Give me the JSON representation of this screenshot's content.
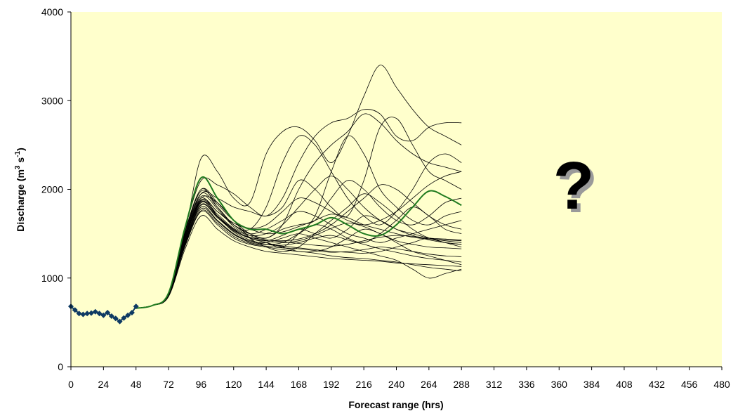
{
  "chart_data": {
    "type": "line",
    "xlabel": "Forecast range (hrs)",
    "ylabel_main": "Discharge (m",
    "ylabel_sup1": "3",
    "ylabel_mid": " s",
    "ylabel_sup2": "-1",
    "ylabel_end": ")",
    "annotation": "?",
    "xlim": [
      0,
      480
    ],
    "ylim": [
      0,
      4000
    ],
    "x_ticks": [
      0,
      24,
      48,
      72,
      96,
      120,
      144,
      168,
      192,
      216,
      240,
      264,
      288,
      312,
      336,
      360,
      384,
      408,
      432,
      456,
      480
    ],
    "y_ticks": [
      0,
      1000,
      2000,
      3000,
      4000
    ],
    "grid": false,
    "colors": {
      "plot_background": "#FFFFCC",
      "observed": "#0E3A63",
      "ensemble": "#000000",
      "control": "#1F7A1F"
    },
    "observed": {
      "x": [
        0,
        3,
        6,
        9,
        12,
        15,
        18,
        21,
        24,
        27,
        30,
        33,
        36,
        39,
        42,
        45,
        48
      ],
      "y": [
        680,
        640,
        600,
        590,
        600,
        605,
        620,
        600,
        580,
        610,
        570,
        545,
        510,
        550,
        580,
        610,
        680
      ]
    },
    "ensemble": {
      "x": [
        48,
        60,
        72,
        84,
        96,
        108,
        120,
        132,
        144,
        156,
        168,
        180,
        192,
        204,
        216,
        228,
        240,
        252,
        264,
        276,
        288
      ],
      "members": [
        [
          660,
          690,
          820,
          1500,
          2350,
          2200,
          1900,
          1850,
          2400,
          2650,
          2700,
          2550,
          2300,
          2600,
          3050,
          3400,
          3150,
          2900,
          2700,
          2600,
          2500
        ],
        [
          660,
          690,
          830,
          1550,
          2100,
          2050,
          1950,
          1800,
          1700,
          1900,
          2300,
          2600,
          2750,
          2800,
          2900,
          2850,
          2600,
          2550,
          2700,
          2750,
          2750
        ],
        [
          660,
          690,
          810,
          1450,
          1900,
          1850,
          1650,
          1500,
          1450,
          1600,
          2000,
          2300,
          2500,
          2650,
          2850,
          2750,
          2550,
          2400,
          2300,
          2250,
          2200
        ],
        [
          660,
          690,
          820,
          1480,
          2000,
          1800,
          1600,
          1550,
          1800,
          2300,
          2600,
          2500,
          2200,
          1900,
          1700,
          1600,
          1750,
          2000,
          2300,
          2400,
          2300
        ],
        [
          660,
          690,
          800,
          1400,
          1850,
          1700,
          1550,
          1450,
          1400,
          1350,
          1500,
          1700,
          2200,
          2600,
          2400,
          2000,
          1800,
          1650,
          1600,
          1700,
          1750
        ],
        [
          660,
          690,
          815,
          1470,
          1950,
          1900,
          1800,
          1750,
          1700,
          1800,
          2100,
          2000,
          1800,
          1700,
          2100,
          2700,
          2800,
          2500,
          2200,
          2100,
          2000
        ],
        [
          660,
          690,
          805,
          1420,
          1880,
          1750,
          1600,
          1500,
          1450,
          1550,
          1600,
          1650,
          1900,
          2100,
          2000,
          1800,
          1650,
          1600,
          1700,
          1850,
          1900
        ],
        [
          660,
          690,
          825,
          1520,
          2000,
          1850,
          1650,
          1450,
          1350,
          1300,
          1350,
          1500,
          1650,
          1800,
          1950,
          1850,
          1700,
          1550,
          1450,
          1400,
          1350
        ],
        [
          660,
          690,
          800,
          1380,
          1800,
          1650,
          1500,
          1400,
          1380,
          1400,
          1500,
          1600,
          1550,
          1450,
          1400,
          1500,
          1650,
          1800,
          1700,
          1550,
          1500
        ],
        [
          660,
          690,
          810,
          1430,
          1850,
          1700,
          1550,
          1450,
          1400,
          1350,
          1300,
          1300,
          1350,
          1450,
          1550,
          1500,
          1400,
          1300,
          1250,
          1200,
          1150
        ],
        [
          660,
          690,
          795,
          1350,
          1750,
          1600,
          1450,
          1380,
          1350,
          1320,
          1300,
          1280,
          1250,
          1230,
          1220,
          1200,
          1180,
          1150,
          1120,
          1100,
          1080
        ],
        [
          660,
          690,
          805,
          1400,
          1800,
          1650,
          1500,
          1420,
          1400,
          1450,
          1500,
          1450,
          1400,
          1350,
          1300,
          1250,
          1200,
          1100,
          1000,
          1050,
          1100
        ],
        [
          660,
          690,
          815,
          1460,
          1900,
          1700,
          1520,
          1430,
          1380,
          1360,
          1340,
          1320,
          1300,
          1290,
          1280,
          1300,
          1350,
          1400,
          1450,
          1400,
          1380
        ],
        [
          660,
          690,
          790,
          1320,
          1700,
          1550,
          1420,
          1350,
          1300,
          1280,
          1260,
          1240,
          1220,
          1210,
          1200,
          1190,
          1170,
          1160,
          1150,
          1140,
          1130
        ],
        [
          660,
          690,
          820,
          1490,
          1950,
          1800,
          1600,
          1500,
          1550,
          1650,
          1750,
          1700,
          1600,
          1500,
          1450,
          1400,
          1450,
          1500,
          1550,
          1600,
          1650
        ],
        [
          660,
          690,
          810,
          1440,
          1870,
          1720,
          1560,
          1480,
          1500,
          1600,
          1800,
          2000,
          2150,
          2000,
          1800,
          1650,
          1550,
          1500,
          1450,
          1420,
          1400
        ],
        [
          660,
          690,
          800,
          1390,
          1820,
          1680,
          1530,
          1450,
          1420,
          1480,
          1550,
          1500,
          1450,
          1550,
          1700,
          1650,
          1550,
          1480,
          1430,
          1400,
          1380
        ],
        [
          660,
          690,
          812,
          1450,
          1880,
          1750,
          1620,
          1550,
          1500,
          1520,
          1580,
          1650,
          1720,
          1680,
          1600,
          1550,
          1500,
          1460,
          1440,
          1430,
          1420
        ],
        [
          660,
          690,
          798,
          1370,
          1780,
          1640,
          1490,
          1410,
          1380,
          1370,
          1400,
          1450,
          1480,
          1430,
          1380,
          1330,
          1290,
          1250,
          1220,
          1200,
          1180
        ],
        [
          660,
          690,
          818,
          1480,
          1920,
          1780,
          1580,
          1480,
          1420,
          1400,
          1420,
          1480,
          1560,
          1620,
          1580,
          1500,
          1420,
          1380,
          1350,
          1340,
          1330
        ],
        [
          660,
          690,
          808,
          1430,
          1860,
          1700,
          1540,
          1460,
          1430,
          1420,
          1440,
          1500,
          1600,
          1750,
          1900,
          2050,
          2000,
          1850,
          1700,
          1600,
          1550
        ],
        [
          660,
          690,
          803,
          1410,
          1830,
          1690,
          1540,
          1460,
          1430,
          1410,
          1390,
          1370,
          1360,
          1380,
          1420,
          1460,
          1480,
          1470,
          1450,
          1440,
          1430
        ],
        [
          660,
          690,
          822,
          1510,
          1980,
          1830,
          1650,
          1560,
          1600,
          1750,
          1900,
          1850,
          1750,
          1650,
          1600,
          1650,
          1750,
          1900,
          2050,
          2150,
          2200
        ],
        [
          660,
          690,
          795,
          1360,
          1760,
          1620,
          1470,
          1390,
          1360,
          1340,
          1330,
          1310,
          1290,
          1300,
          1320,
          1350,
          1330,
          1300,
          1270,
          1250,
          1240
        ]
      ],
      "control": [
        660,
        690,
        830,
        1560,
        2130,
        1900,
        1650,
        1550,
        1550,
        1500,
        1550,
        1600,
        1680,
        1600,
        1500,
        1480,
        1600,
        1800,
        1980,
        1920,
        1820
      ]
    }
  }
}
